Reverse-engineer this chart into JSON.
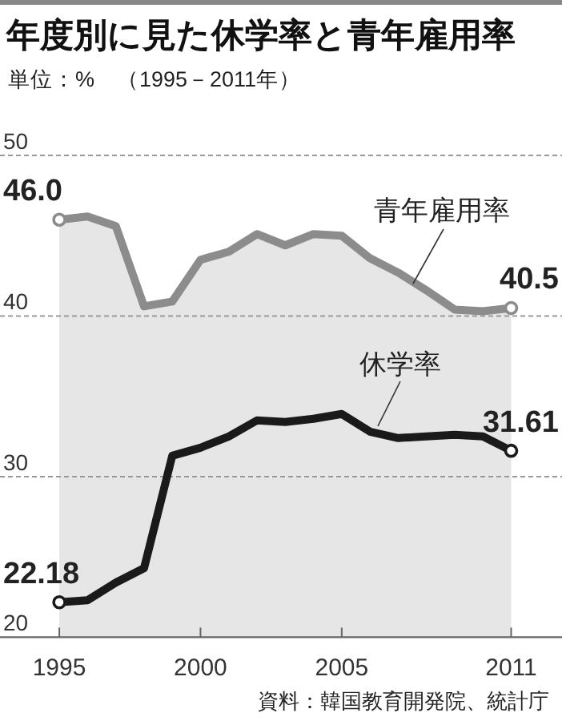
{
  "chart_data": {
    "type": "line",
    "title": "年度別に見た休学率と青年雇用率",
    "subtitle": "単位：%　（1995－2011年）",
    "annotations": [
      "資料：韓国教育開発院、統計庁"
    ],
    "x": [
      1995,
      1996,
      1997,
      1998,
      1999,
      2000,
      2001,
      2002,
      2003,
      2004,
      2005,
      2006,
      2007,
      2008,
      2009,
      2010,
      2011
    ],
    "series": [
      {
        "name": "青年雇用率",
        "type": "area",
        "color": "#8c8c8c",
        "values": [
          46.0,
          46.2,
          45.6,
          40.6,
          40.9,
          43.5,
          44.0,
          45.1,
          44.4,
          45.1,
          45.0,
          43.6,
          42.7,
          41.6,
          40.4,
          40.3,
          40.5
        ],
        "value_labels": [
          "46.0",
          null,
          null,
          null,
          null,
          null,
          null,
          null,
          null,
          null,
          null,
          null,
          null,
          null,
          null,
          null,
          "40.5"
        ]
      },
      {
        "name": "休学率",
        "color": "#1a1a1a",
        "values": [
          22.18,
          22.3,
          23.4,
          24.3,
          31.3,
          31.8,
          32.5,
          33.5,
          33.4,
          33.6,
          33.9,
          32.8,
          32.4,
          32.5,
          32.6,
          32.5,
          31.61
        ],
        "value_labels": [
          "22.18",
          null,
          null,
          null,
          null,
          null,
          null,
          null,
          null,
          null,
          null,
          null,
          null,
          null,
          null,
          null,
          "31.61"
        ]
      }
    ],
    "xlim": [
      1992.9,
      2012.8
    ],
    "ylim": [
      20,
      50
    ],
    "xticks": [
      1995,
      2000,
      2005,
      2011
    ],
    "yticks": [
      20,
      30,
      40,
      50
    ],
    "grid": "y",
    "marker": "none",
    "line_style": "solid"
  }
}
